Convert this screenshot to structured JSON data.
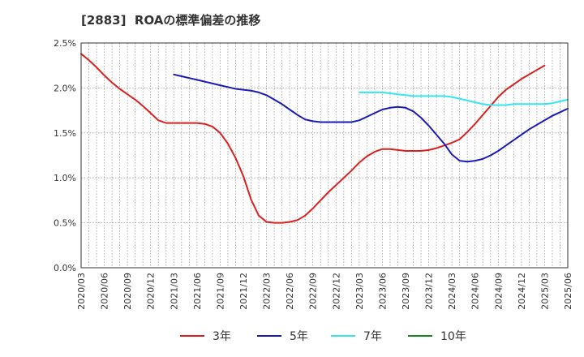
{
  "chart_data": {
    "type": "line",
    "title": "[2883]  ROAの標準偏差の推移",
    "x_ticks": [
      "2020/03",
      "2020/06",
      "2020/09",
      "2020/12",
      "2021/03",
      "2021/06",
      "2021/09",
      "2021/12",
      "2022/03",
      "2022/06",
      "2022/09",
      "2022/12",
      "2023/03",
      "2023/06",
      "2023/09",
      "2023/12",
      "2024/03",
      "2024/06",
      "2024/09",
      "2024/12",
      "2025/03",
      "2025/06"
    ],
    "y_ticks": [
      "0.0%",
      "0.5%",
      "1.0%",
      "1.5%",
      "2.0%",
      "2.5%"
    ],
    "ylim": [
      0,
      2.5
    ],
    "x_start": "2020/03",
    "grid": true,
    "legend_position": "bottom",
    "series": [
      {
        "name": "3年",
        "color": "#dd1f1f",
        "points": [
          [
            "2020/03",
            2.38
          ],
          [
            "2020/04",
            2.31
          ],
          [
            "2020/05",
            2.23
          ],
          [
            "2020/06",
            2.14
          ],
          [
            "2020/07",
            2.06
          ],
          [
            "2020/08",
            1.99
          ],
          [
            "2020/09",
            1.93
          ],
          [
            "2020/10",
            1.87
          ],
          [
            "2020/11",
            1.8
          ],
          [
            "2020/12",
            1.72
          ],
          [
            "2021/01",
            1.64
          ],
          [
            "2021/02",
            1.61
          ],
          [
            "2021/03",
            1.61
          ],
          [
            "2021/04",
            1.61
          ],
          [
            "2021/05",
            1.61
          ],
          [
            "2021/06",
            1.61
          ],
          [
            "2021/07",
            1.6
          ],
          [
            "2021/08",
            1.57
          ],
          [
            "2021/09",
            1.5
          ],
          [
            "2021/10",
            1.38
          ],
          [
            "2021/11",
            1.22
          ],
          [
            "2021/12",
            1.02
          ],
          [
            "2022/01",
            0.76
          ],
          [
            "2022/02",
            0.58
          ],
          [
            "2022/03",
            0.51
          ],
          [
            "2022/04",
            0.5
          ],
          [
            "2022/05",
            0.5
          ],
          [
            "2022/06",
            0.51
          ],
          [
            "2022/07",
            0.53
          ],
          [
            "2022/08",
            0.58
          ],
          [
            "2022/09",
            0.66
          ],
          [
            "2022/10",
            0.75
          ],
          [
            "2022/11",
            0.84
          ],
          [
            "2022/12",
            0.92
          ],
          [
            "2023/01",
            1.0
          ],
          [
            "2023/02",
            1.08
          ],
          [
            "2023/03",
            1.17
          ],
          [
            "2023/04",
            1.24
          ],
          [
            "2023/05",
            1.29
          ],
          [
            "2023/06",
            1.32
          ],
          [
            "2023/07",
            1.32
          ],
          [
            "2023/08",
            1.31
          ],
          [
            "2023/09",
            1.3
          ],
          [
            "2023/10",
            1.3
          ],
          [
            "2023/11",
            1.3
          ],
          [
            "2023/12",
            1.31
          ],
          [
            "2024/01",
            1.33
          ],
          [
            "2024/02",
            1.36
          ],
          [
            "2024/03",
            1.39
          ],
          [
            "2024/04",
            1.43
          ],
          [
            "2024/05",
            1.51
          ],
          [
            "2024/06",
            1.6
          ],
          [
            "2024/07",
            1.7
          ],
          [
            "2024/08",
            1.8
          ],
          [
            "2024/09",
            1.9
          ],
          [
            "2024/10",
            1.98
          ],
          [
            "2024/11",
            2.04
          ],
          [
            "2024/12",
            2.1
          ],
          [
            "2025/01",
            2.15
          ],
          [
            "2025/02",
            2.2
          ],
          [
            "2025/03",
            2.25
          ]
        ]
      },
      {
        "name": "5年",
        "color": "#1a1ab8",
        "points": [
          [
            "2021/03",
            2.15
          ],
          [
            "2021/04",
            2.13
          ],
          [
            "2021/05",
            2.11
          ],
          [
            "2021/06",
            2.09
          ],
          [
            "2021/07",
            2.07
          ],
          [
            "2021/08",
            2.05
          ],
          [
            "2021/09",
            2.03
          ],
          [
            "2021/10",
            2.01
          ],
          [
            "2021/11",
            1.99
          ],
          [
            "2021/12",
            1.98
          ],
          [
            "2022/01",
            1.97
          ],
          [
            "2022/02",
            1.95
          ],
          [
            "2022/03",
            1.92
          ],
          [
            "2022/04",
            1.87
          ],
          [
            "2022/05",
            1.82
          ],
          [
            "2022/06",
            1.76
          ],
          [
            "2022/07",
            1.7
          ],
          [
            "2022/08",
            1.65
          ],
          [
            "2022/09",
            1.63
          ],
          [
            "2022/10",
            1.62
          ],
          [
            "2022/11",
            1.62
          ],
          [
            "2022/12",
            1.62
          ],
          [
            "2023/01",
            1.62
          ],
          [
            "2023/02",
            1.62
          ],
          [
            "2023/03",
            1.64
          ],
          [
            "2023/04",
            1.68
          ],
          [
            "2023/05",
            1.72
          ],
          [
            "2023/06",
            1.76
          ],
          [
            "2023/07",
            1.78
          ],
          [
            "2023/08",
            1.79
          ],
          [
            "2023/09",
            1.78
          ],
          [
            "2023/10",
            1.74
          ],
          [
            "2023/11",
            1.67
          ],
          [
            "2023/12",
            1.58
          ],
          [
            "2024/01",
            1.48
          ],
          [
            "2024/02",
            1.38
          ],
          [
            "2024/03",
            1.26
          ],
          [
            "2024/04",
            1.19
          ],
          [
            "2024/05",
            1.18
          ],
          [
            "2024/06",
            1.19
          ],
          [
            "2024/07",
            1.21
          ],
          [
            "2024/08",
            1.25
          ],
          [
            "2024/09",
            1.3
          ],
          [
            "2024/10",
            1.36
          ],
          [
            "2024/11",
            1.42
          ],
          [
            "2024/12",
            1.48
          ],
          [
            "2025/01",
            1.54
          ],
          [
            "2025/02",
            1.59
          ],
          [
            "2025/03",
            1.64
          ],
          [
            "2025/04",
            1.69
          ],
          [
            "2025/05",
            1.73
          ],
          [
            "2025/06",
            1.77
          ]
        ]
      },
      {
        "name": "7年",
        "color": "#33e6f2",
        "points": [
          [
            "2023/03",
            1.95
          ],
          [
            "2023/04",
            1.95
          ],
          [
            "2023/05",
            1.95
          ],
          [
            "2023/06",
            1.95
          ],
          [
            "2023/07",
            1.94
          ],
          [
            "2023/08",
            1.93
          ],
          [
            "2023/09",
            1.92
          ],
          [
            "2023/10",
            1.91
          ],
          [
            "2023/11",
            1.91
          ],
          [
            "2023/12",
            1.91
          ],
          [
            "2024/01",
            1.91
          ],
          [
            "2024/02",
            1.91
          ],
          [
            "2024/03",
            1.9
          ],
          [
            "2024/04",
            1.88
          ],
          [
            "2024/05",
            1.86
          ],
          [
            "2024/06",
            1.84
          ],
          [
            "2024/07",
            1.82
          ],
          [
            "2024/08",
            1.81
          ],
          [
            "2024/09",
            1.81
          ],
          [
            "2024/10",
            1.81
          ],
          [
            "2024/11",
            1.82
          ],
          [
            "2024/12",
            1.82
          ],
          [
            "2025/01",
            1.82
          ],
          [
            "2025/02",
            1.82
          ],
          [
            "2025/03",
            1.82
          ],
          [
            "2025/04",
            1.83
          ],
          [
            "2025/05",
            1.85
          ],
          [
            "2025/06",
            1.87
          ]
        ]
      },
      {
        "name": "10年",
        "color": "#1a8a1a",
        "points": []
      }
    ]
  }
}
